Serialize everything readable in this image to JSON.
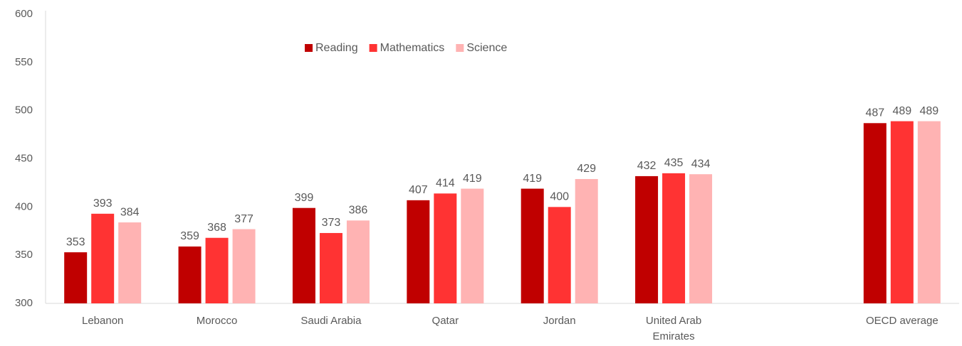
{
  "chart_data": {
    "type": "bar",
    "categories": [
      "Lebanon",
      "Morocco",
      "Saudi Arabia",
      "Qatar",
      "Jordan",
      "United Arab Emirates",
      null,
      "OECD average"
    ],
    "series": [
      {
        "name": "Reading",
        "color": "#c00000",
        "values": [
          353,
          359,
          399,
          407,
          419,
          432,
          null,
          487
        ]
      },
      {
        "name": "Mathematics",
        "color": "#ff3333",
        "values": [
          393,
          368,
          373,
          414,
          400,
          435,
          null,
          489
        ]
      },
      {
        "name": "Science",
        "color": "#ffb3b3",
        "values": [
          384,
          377,
          386,
          419,
          429,
          434,
          null,
          489
        ]
      }
    ],
    "ylim": [
      300,
      600
    ],
    "yticks": [
      300,
      350,
      400,
      450,
      500,
      550,
      600
    ],
    "grid": false
  }
}
